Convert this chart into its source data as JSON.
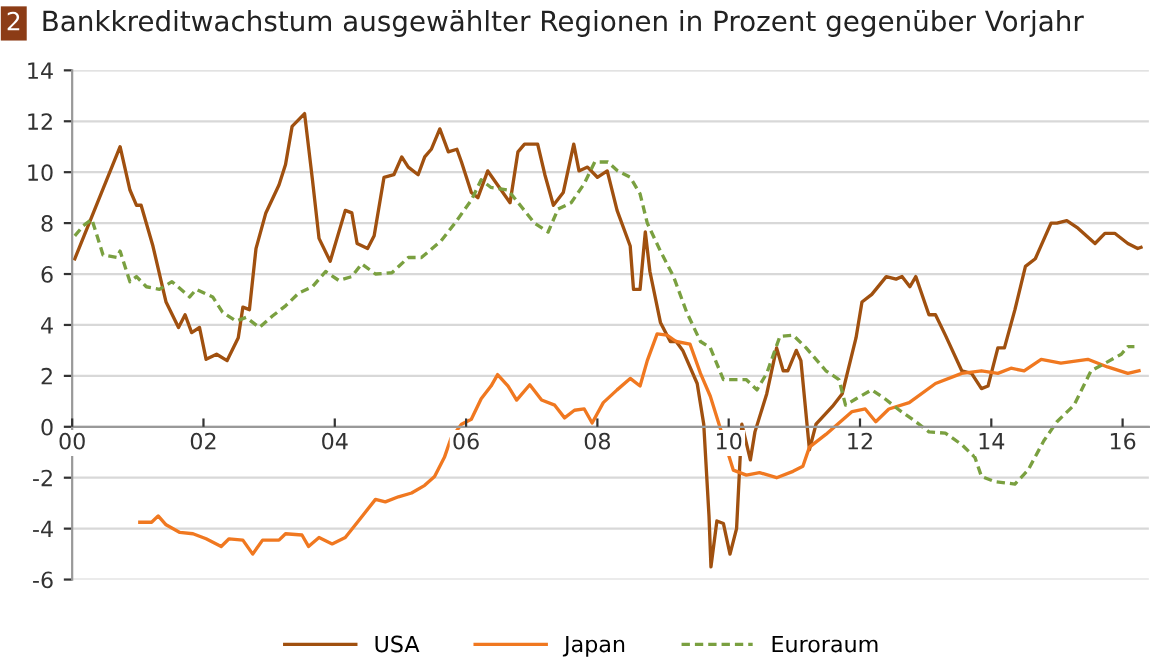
{
  "chart_data": {
    "type": "line",
    "title": "Bankkreditwachstum ausgewählter Regionen in Prozent gegenüber Vorjahr",
    "annotations": [
      "2"
    ],
    "xlim": [
      0,
      16.4
    ],
    "xticks": [
      {
        "value": 0,
        "label": "00"
      },
      {
        "value": 2,
        "label": "02"
      },
      {
        "value": 4,
        "label": "04"
      },
      {
        "value": 6,
        "label": "06"
      },
      {
        "value": 8,
        "label": "08"
      },
      {
        "value": 10,
        "label": "10"
      },
      {
        "value": 12,
        "label": "12"
      },
      {
        "value": 14,
        "label": "14"
      },
      {
        "value": 16,
        "label": "16"
      }
    ],
    "ylim": [
      -6,
      14
    ],
    "yticks": [
      -6,
      -4,
      -2,
      0,
      2,
      4,
      6,
      8,
      10,
      12,
      14
    ],
    "grid": "y",
    "legend": "bottom",
    "series": [
      {
        "name": "USA",
        "color": "#a0500f",
        "line_style": "solid",
        "x": [
          0.04,
          0.73,
          0.88,
          0.98,
          1.05,
          1.23,
          1.43,
          1.62,
          1.72,
          1.82,
          1.94,
          2.04,
          2.2,
          2.36,
          2.53,
          2.6,
          2.7,
          2.8,
          2.95,
          3.15,
          3.25,
          3.35,
          3.54,
          3.66,
          3.76,
          3.93,
          4.16,
          4.26,
          4.34,
          4.5,
          4.6,
          4.75,
          4.9,
          5.02,
          5.12,
          5.27,
          5.37,
          5.47,
          5.6,
          5.73,
          5.86,
          5.93,
          6.08,
          6.18,
          6.33,
          6.48,
          6.67,
          6.79,
          6.89,
          7.09,
          7.2,
          7.33,
          7.48,
          7.64,
          7.72,
          7.85,
          8.0,
          8.15,
          8.3,
          8.5,
          8.55,
          8.65,
          8.73,
          8.8,
          8.96,
          9.11,
          9.2,
          9.3,
          9.52,
          9.62,
          9.7,
          9.73,
          9.82,
          9.92,
          10.02,
          10.12,
          10.2,
          10.33,
          10.4,
          10.58,
          10.73,
          10.83,
          10.9,
          11.03,
          11.1,
          11.23,
          11.33,
          11.58,
          11.73,
          11.94,
          12.03,
          12.18,
          12.4,
          12.55,
          12.64,
          12.76,
          12.85,
          13.05,
          13.15,
          13.3,
          13.55,
          13.7,
          13.85,
          13.95,
          14.1,
          14.2,
          14.36,
          14.52,
          14.67,
          14.91,
          15.0,
          15.15,
          15.32,
          15.58,
          15.73,
          15.88,
          16.08,
          16.23,
          16.28
        ],
        "values": [
          6.6,
          11.0,
          9.3,
          8.7,
          8.7,
          7.1,
          4.9,
          3.9,
          4.4,
          3.7,
          3.9,
          2.65,
          2.85,
          2.6,
          3.5,
          4.7,
          4.6,
          7.0,
          8.4,
          9.5,
          10.3,
          11.8,
          12.3,
          9.7,
          7.4,
          6.5,
          8.5,
          8.4,
          7.2,
          7.0,
          7.5,
          9.8,
          9.9,
          10.6,
          10.2,
          9.9,
          10.6,
          10.9,
          11.7,
          10.8,
          10.9,
          10.4,
          9.2,
          9.0,
          10.05,
          9.5,
          8.8,
          10.8,
          11.1,
          11.1,
          9.9,
          8.7,
          9.2,
          11.1,
          10.05,
          10.2,
          9.8,
          10.05,
          8.5,
          7.1,
          5.4,
          5.4,
          7.65,
          6.1,
          4.1,
          3.35,
          3.35,
          3.0,
          1.7,
          0.1,
          -3.5,
          -5.5,
          -3.7,
          -3.8,
          -5.0,
          -4.0,
          0.1,
          -1.3,
          -0.2,
          1.3,
          3.1,
          2.2,
          2.2,
          3.0,
          2.6,
          -0.9,
          0.1,
          0.8,
          1.3,
          3.5,
          4.9,
          5.2,
          5.9,
          5.8,
          5.9,
          5.5,
          5.9,
          4.4,
          4.4,
          3.6,
          2.2,
          2.1,
          1.5,
          1.6,
          3.1,
          3.1,
          4.6,
          6.3,
          6.6,
          8.0,
          8.0,
          8.1,
          7.8,
          7.2,
          7.6,
          7.6,
          7.2,
          7.0,
          7.05
        ]
      },
      {
        "name": "Japan",
        "color": "#f07820",
        "line_style": "solid",
        "x": [
          1.03,
          1.21,
          1.31,
          1.43,
          1.64,
          1.84,
          2.04,
          2.27,
          2.39,
          2.6,
          2.75,
          2.9,
          3.15,
          3.25,
          3.5,
          3.6,
          3.76,
          3.96,
          4.16,
          4.36,
          4.62,
          4.77,
          4.97,
          5.17,
          5.37,
          5.52,
          5.67,
          5.77,
          5.93,
          6.08,
          6.23,
          6.38,
          6.48,
          6.64,
          6.77,
          6.97,
          7.15,
          7.35,
          7.5,
          7.65,
          7.8,
          7.92,
          8.09,
          8.3,
          8.5,
          8.65,
          8.76,
          8.91,
          9.06,
          9.2,
          9.41,
          9.57,
          9.72,
          10.07,
          10.27,
          10.47,
          10.73,
          10.98,
          11.13,
          11.23,
          11.48,
          11.88,
          12.08,
          12.24,
          12.44,
          12.75,
          13.15,
          13.55,
          13.85,
          14.1,
          14.3,
          14.5,
          14.76,
          15.06,
          15.47,
          15.77,
          16.08,
          16.25
        ],
        "values": [
          -3.75,
          -3.75,
          -3.5,
          -3.85,
          -4.15,
          -4.2,
          -4.4,
          -4.7,
          -4.4,
          -4.45,
          -5.0,
          -4.45,
          -4.45,
          -4.2,
          -4.25,
          -4.7,
          -4.35,
          -4.6,
          -4.35,
          -3.7,
          -2.85,
          -2.95,
          -2.75,
          -2.6,
          -2.3,
          -1.95,
          -1.2,
          -0.45,
          0.1,
          0.3,
          1.1,
          1.6,
          2.05,
          1.6,
          1.05,
          1.65,
          1.05,
          0.85,
          0.35,
          0.65,
          0.7,
          0.15,
          0.95,
          1.45,
          1.9,
          1.6,
          2.6,
          3.65,
          3.6,
          3.35,
          3.25,
          2.1,
          1.2,
          -1.7,
          -1.9,
          -1.8,
          -2.0,
          -1.75,
          -1.55,
          -0.8,
          -0.3,
          0.6,
          0.7,
          0.2,
          0.7,
          0.95,
          1.7,
          2.1,
          2.2,
          2.1,
          2.3,
          2.2,
          2.65,
          2.5,
          2.65,
          2.35,
          2.1,
          2.2
        ]
      },
      {
        "name": "Euroraum",
        "color": "#7aa040",
        "line_style": "dashed",
        "x": [
          0.04,
          0.17,
          0.3,
          0.47,
          0.68,
          0.73,
          0.88,
          0.98,
          1.13,
          1.33,
          1.52,
          1.79,
          1.89,
          2.14,
          2.29,
          2.5,
          2.65,
          2.85,
          3.05,
          3.25,
          3.45,
          3.66,
          3.86,
          4.06,
          4.26,
          4.41,
          4.62,
          4.87,
          5.12,
          5.32,
          5.62,
          5.83,
          6.08,
          6.23,
          6.38,
          6.64,
          6.84,
          7.04,
          7.25,
          7.4,
          7.6,
          7.8,
          7.96,
          8.16,
          8.31,
          8.5,
          8.65,
          8.76,
          8.96,
          9.16,
          9.36,
          9.57,
          9.72,
          9.92,
          10.27,
          10.43,
          10.58,
          10.78,
          10.98,
          11.18,
          11.48,
          11.68,
          11.78,
          11.94,
          12.18,
          12.38,
          12.6,
          12.85,
          13.05,
          13.3,
          13.55,
          13.75,
          13.85,
          14.05,
          14.36,
          14.56,
          14.8,
          15.0,
          15.26,
          15.52,
          15.77,
          15.98,
          16.08,
          16.18
        ],
        "values": [
          7.5,
          7.9,
          8.15,
          6.75,
          6.65,
          6.9,
          5.7,
          5.9,
          5.5,
          5.4,
          5.7,
          5.1,
          5.4,
          5.1,
          4.5,
          4.15,
          4.3,
          3.9,
          4.35,
          4.75,
          5.25,
          5.5,
          6.1,
          5.75,
          5.9,
          6.4,
          6.0,
          6.05,
          6.65,
          6.65,
          7.3,
          8.0,
          8.9,
          9.7,
          9.4,
          9.3,
          8.65,
          8.0,
          7.65,
          8.55,
          8.8,
          9.55,
          10.4,
          10.4,
          10.05,
          9.8,
          9.15,
          8.0,
          6.9,
          5.9,
          4.5,
          3.35,
          3.1,
          1.85,
          1.85,
          1.45,
          2.1,
          3.55,
          3.6,
          3.1,
          2.2,
          1.85,
          0.85,
          1.1,
          1.45,
          1.1,
          0.65,
          0.2,
          -0.2,
          -0.25,
          -0.7,
          -1.2,
          -1.95,
          -2.15,
          -2.25,
          -1.7,
          -0.55,
          0.2,
          0.85,
          2.2,
          2.55,
          2.85,
          3.15,
          3.15
        ]
      }
    ]
  }
}
